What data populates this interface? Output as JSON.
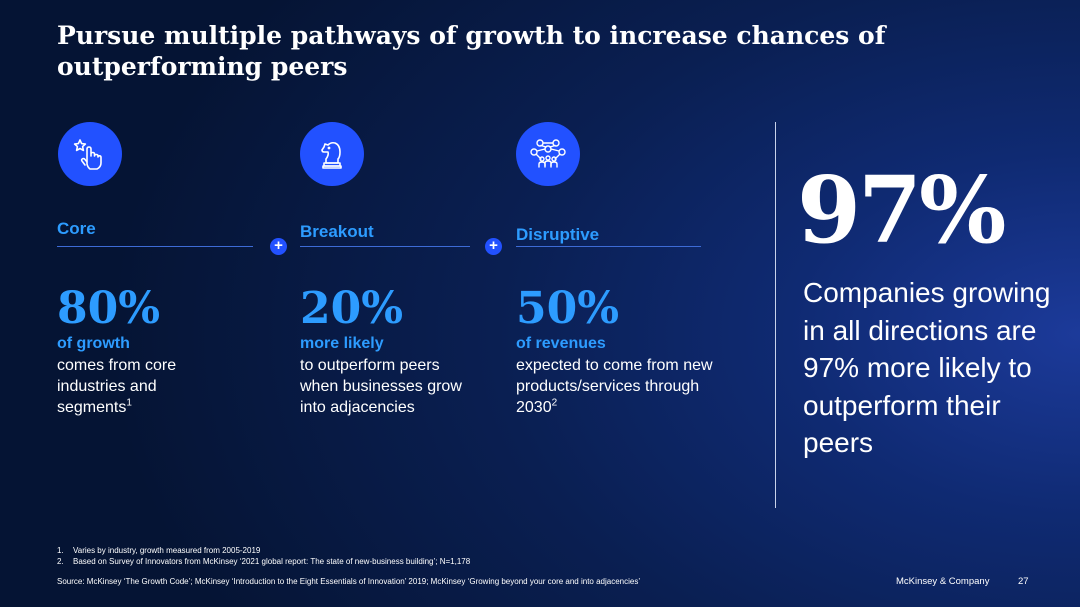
{
  "title": "Pursue multiple pathways of growth to increase chances of outperforming peers",
  "columns": [
    {
      "label": "Core",
      "icon": "tap-hand-star-icon",
      "stat": "80%",
      "stat_label": "of growth",
      "desc": "comes from core industries and segments",
      "footnote_ref": "1"
    },
    {
      "label": "Breakout",
      "icon": "chess-knight-icon",
      "stat": "20%",
      "stat_label": "more likely",
      "desc": "to outperform peers when businesses grow into adjacencies",
      "footnote_ref": ""
    },
    {
      "label": "Disruptive",
      "icon": "network-people-icon",
      "stat": "50%",
      "stat_label": "of revenues",
      "desc": "expected to come from new products/services through 2030",
      "footnote_ref": "2"
    }
  ],
  "plus_symbol": "+",
  "hero": {
    "value": "97%",
    "text": "Companies growing in all directions are 97% more likely to outperform their peers"
  },
  "footnotes": [
    {
      "num": "1.",
      "text": "Varies by industry, growth measured from 2005-2019"
    },
    {
      "num": "2.",
      "text": "Based on Survey of Innovators from McKinsey ‘2021 global report: The state of new-business building’; N=1,178"
    }
  ],
  "source": "Source: McKinsey ‘The Growth Code’; McKinsey ‘Introduction to the Eight Essentials of Innovation’ 2019; McKinsey ‘Growing beyond your core and into adjacencies’",
  "brand": "McKinsey & Company",
  "page_number": "27",
  "colors": {
    "accent": "#2251ff",
    "highlight": "#2d9cff",
    "background": "#0a1f52"
  }
}
